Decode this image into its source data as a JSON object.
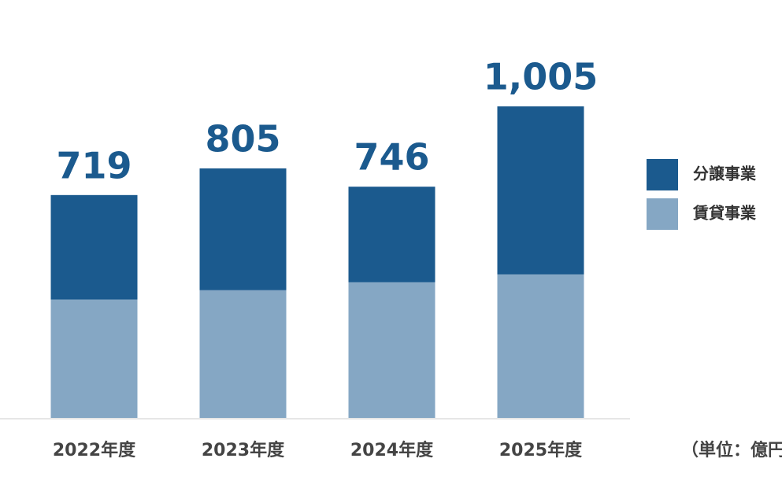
{
  "chart_data": {
    "type": "stacked-bar",
    "categories": [
      "2022年度",
      "2023年度",
      "2024年度",
      "2025年度"
    ],
    "series": [
      {
        "name": "賃貸事業",
        "color": "#85a7c4",
        "values": [
          382,
          412,
          438,
          463
        ]
      },
      {
        "name": "分譲事業",
        "color": "#1b5a8e",
        "values": [
          337,
          393,
          308,
          542
        ]
      }
    ],
    "totals": [
      719,
      805,
      746,
      1005
    ],
    "totals_labels": [
      "719",
      "805",
      "746",
      "1,005"
    ],
    "unit_note": "（単位：億円）",
    "ylim": [
      0,
      1300
    ]
  }
}
